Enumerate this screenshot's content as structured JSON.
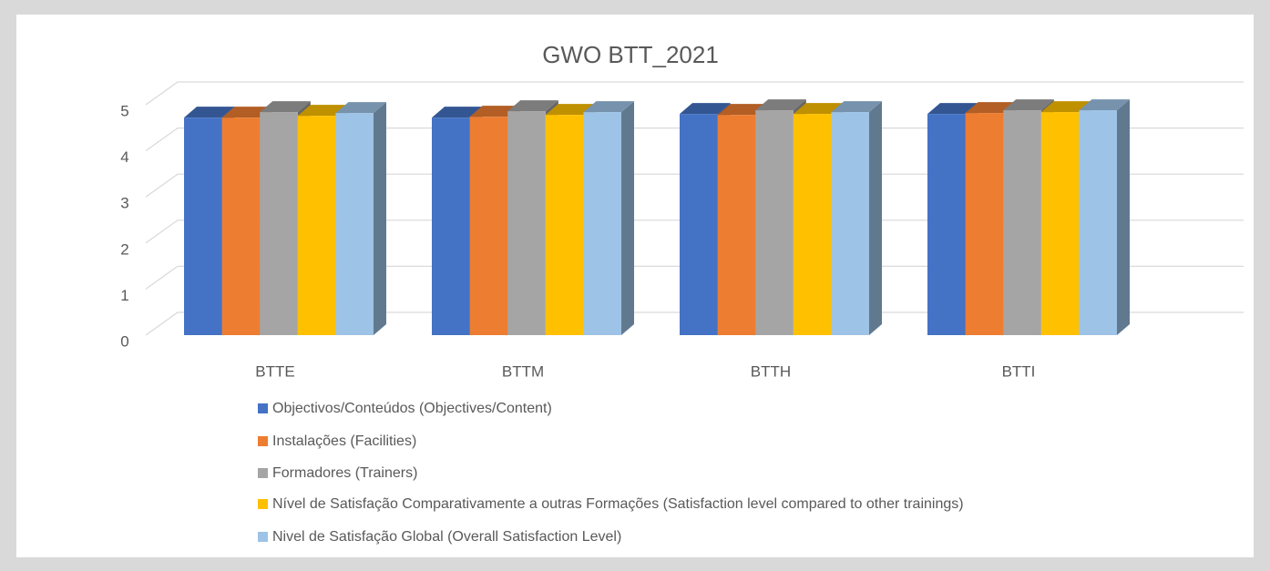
{
  "chart_data": {
    "type": "bar3d",
    "title": "GWO BTT_2021",
    "categories": [
      "BTTE",
      "BTTM",
      "BTTH",
      "BTTI"
    ],
    "series": [
      {
        "name": "Objectivos/Conteúdos (Objectives/Content)",
        "color": "#4472c4",
        "values": [
          4.72,
          4.72,
          4.8,
          4.8
        ]
      },
      {
        "name": "Instalações (Facilities)",
        "color": "#ed7d31",
        "values": [
          4.72,
          4.74,
          4.78,
          4.82
        ]
      },
      {
        "name": "Formadores (Trainers)",
        "color": "#a5a5a5",
        "values": [
          4.84,
          4.86,
          4.88,
          4.88
        ]
      },
      {
        "name": "Nível de Satisfação Comparativamente a outras Formações (Satisfaction level compared to other trainings)",
        "color": "#ffc000",
        "values": [
          4.76,
          4.78,
          4.8,
          4.84
        ]
      },
      {
        "name": "Nivel de Satisfação Global (Overall Satisfaction Level)",
        "color": "#9dc3e6",
        "values": [
          4.82,
          4.84,
          4.84,
          4.88
        ]
      }
    ],
    "ylim": [
      0,
      5
    ],
    "yticks": [
      0,
      1,
      2,
      3,
      4,
      5
    ],
    "grid": true,
    "legend": "bottom"
  }
}
